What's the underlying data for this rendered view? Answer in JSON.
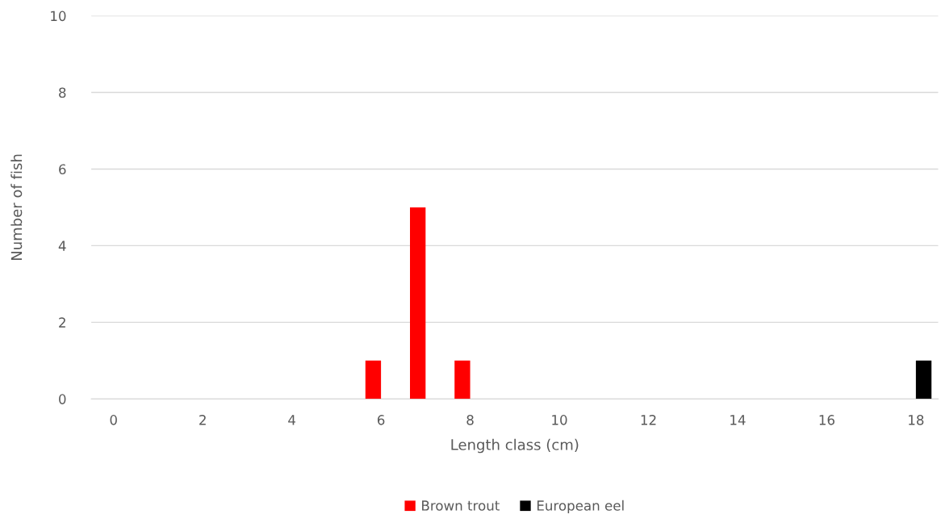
{
  "chart_data": {
    "type": "bar",
    "xlabel": "Length class (cm)",
    "ylabel": "Number of fish",
    "categories": [
      "0",
      null,
      "2",
      null,
      "4",
      null,
      "6",
      null,
      "8",
      null,
      "10",
      null,
      "12",
      null,
      "14",
      null,
      "16",
      null,
      "18"
    ],
    "series": [
      {
        "name": "Brown trout",
        "color": "#ff0000",
        "values": [
          null,
          null,
          null,
          null,
          null,
          null,
          1,
          5,
          1,
          null,
          null,
          null,
          null,
          null,
          null,
          null,
          null,
          null,
          null
        ]
      },
      {
        "name": "European eel",
        "color": "#000000",
        "values": [
          null,
          null,
          null,
          null,
          null,
          null,
          null,
          null,
          null,
          null,
          null,
          null,
          null,
          null,
          null,
          null,
          null,
          null,
          1
        ]
      }
    ],
    "ylim": [
      0,
      10
    ],
    "yticks": [
      0,
      2,
      4,
      6,
      8,
      10
    ],
    "grid": "y",
    "legend": "bottom"
  }
}
